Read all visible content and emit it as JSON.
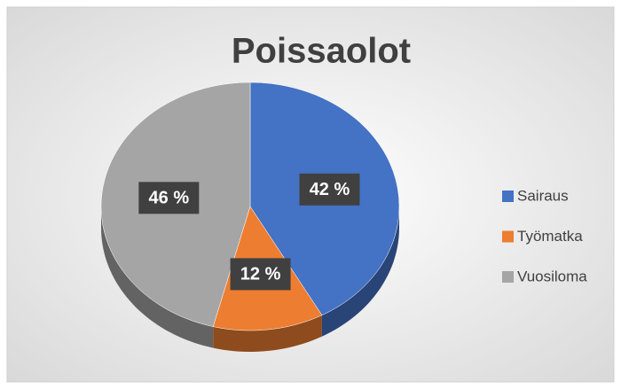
{
  "chart_data": {
    "type": "pie",
    "title": "Poissaolot",
    "categories": [
      "Sairaus",
      "Työmatka",
      "Vuosiloma"
    ],
    "values": [
      42,
      12,
      46
    ],
    "value_labels": [
      "42 %",
      "12 %",
      "46 %"
    ],
    "colors": [
      "#4472c4",
      "#ed7d31",
      "#a5a5a5"
    ],
    "legend": "right"
  }
}
